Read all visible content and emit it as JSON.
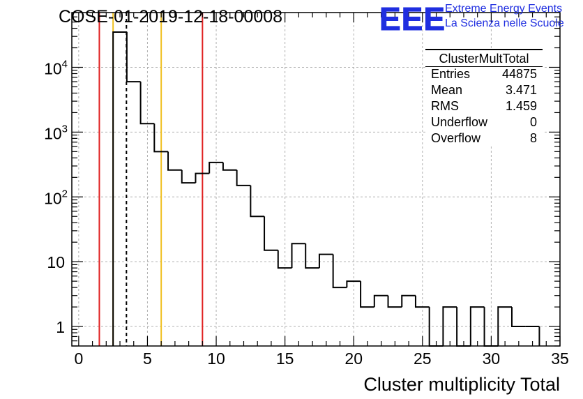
{
  "title": "COSE-01-2019-12-18-00008",
  "logo": {
    "mark": "EEE",
    "line1": "Extreme Energy Events",
    "line2": "La Scienza nelle Scuole",
    "color": "#1f2ee0"
  },
  "stats": {
    "title": "ClusterMultTotal",
    "rows": [
      {
        "key": "Entries",
        "value": "44875"
      },
      {
        "key": "Mean",
        "value": "3.471"
      },
      {
        "key": "RMS",
        "value": "1.459"
      },
      {
        "key": "Underflow",
        "value": "0"
      },
      {
        "key": "Overflow",
        "value": "8"
      }
    ]
  },
  "chart_data": {
    "type": "histogram",
    "xlabel": "Cluster multiplicity Total",
    "ylabel": "",
    "xlim": [
      -0.5,
      35
    ],
    "ylim": [
      0.5,
      70000
    ],
    "yscale": "log",
    "grid": true,
    "x_ticks": [
      "0",
      "5",
      "10",
      "15",
      "20",
      "25",
      "30",
      "35"
    ],
    "y_ticks": [
      "1",
      "10",
      "10^2",
      "10^3",
      "10^4"
    ],
    "bin_edges": [
      2.5,
      3.5,
      4.5,
      5.5,
      6.5,
      7.5,
      8.5,
      9.5,
      10.5,
      11.5,
      12.5,
      13.5,
      14.5,
      15.5,
      16.5,
      17.5,
      18.5,
      19.5,
      20.5,
      21.5,
      22.5,
      23.5,
      24.5,
      25.5,
      26.5,
      27.5,
      28.5,
      29.5,
      30.5,
      31.5,
      32.5,
      33.5
    ],
    "counts": [
      35000,
      6000,
      1350,
      500,
      260,
      165,
      230,
      340,
      260,
      150,
      50,
      15,
      8,
      19,
      8,
      13,
      4,
      5,
      2,
      3,
      2,
      3,
      2,
      0,
      2,
      0,
      2,
      0,
      2,
      1,
      1
    ],
    "vertical_lines": [
      {
        "x": 1.5,
        "color": "#e02020",
        "style": "solid"
      },
      {
        "x": 2.5,
        "color": "#f0c020",
        "style": "solid"
      },
      {
        "x": 3.471,
        "color": "#000000",
        "style": "dashed"
      },
      {
        "x": 6.0,
        "color": "#f0c020",
        "style": "solid"
      },
      {
        "x": 9.0,
        "color": "#e02020",
        "style": "solid"
      }
    ]
  }
}
